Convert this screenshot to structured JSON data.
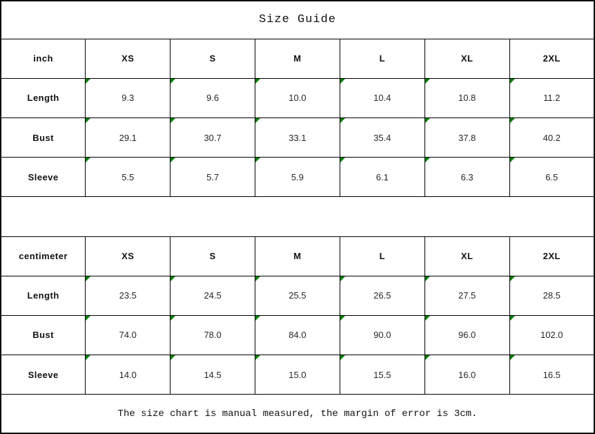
{
  "title": "Size Guide",
  "footer_note": "The size chart is manual measured, the margin of error is 3cm.",
  "colors": {
    "flag_green": "#008000",
    "border": "#000000",
    "background": "#ffffff"
  },
  "sections": [
    {
      "unit_label": "inch",
      "size_headers": [
        "XS",
        "S",
        "M",
        "L",
        "XL",
        "2XL"
      ],
      "rows": [
        {
          "label": "Length",
          "values": [
            "9.3",
            "9.6",
            "10.0",
            "10.4",
            "10.8",
            "11.2"
          ]
        },
        {
          "label": "Bust",
          "values": [
            "29.1",
            "30.7",
            "33.1",
            "35.4",
            "37.8",
            "40.2"
          ]
        },
        {
          "label": "Sleeve",
          "values": [
            "5.5",
            "5.7",
            "5.9",
            "6.1",
            "6.3",
            "6.5"
          ]
        }
      ]
    },
    {
      "unit_label": "centimeter",
      "size_headers": [
        "XS",
        "S",
        "M",
        "L",
        "XL",
        "2XL"
      ],
      "rows": [
        {
          "label": "Length",
          "values": [
            "23.5",
            "24.5",
            "25.5",
            "26.5",
            "27.5",
            "28.5"
          ]
        },
        {
          "label": "Bust",
          "values": [
            "74.0",
            "78.0",
            "84.0",
            "90.0",
            "96.0",
            "102.0"
          ]
        },
        {
          "label": "Sleeve",
          "values": [
            "14.0",
            "14.5",
            "15.0",
            "15.5",
            "16.0",
            "16.5"
          ]
        }
      ]
    }
  ]
}
